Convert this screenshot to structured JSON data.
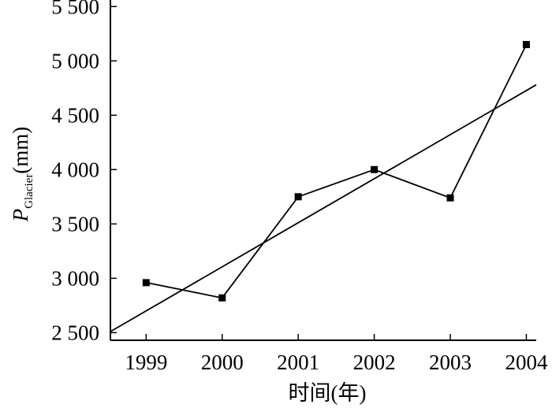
{
  "chart_data": {
    "type": "line",
    "title": "",
    "xlabel": "时间(年)",
    "ylabel": {
      "symbol": "P",
      "subscript": "Glacier",
      "unit": "(mm)"
    },
    "x": [
      1999,
      2000,
      2001,
      2002,
      2003,
      2004
    ],
    "x_tick_labels": [
      "1999",
      "2000",
      "2001",
      "2002",
      "2003",
      "2004"
    ],
    "y_ticks": [
      2500,
      3000,
      3500,
      4000,
      4500,
      5000,
      5500
    ],
    "y_tick_labels": [
      "2 500",
      "3 000",
      "3 500",
      "4 000",
      "4 500",
      "5 000",
      "5 500"
    ],
    "xlim": [
      1998.53,
      2004.13
    ],
    "ylim": [
      2430,
      5560
    ],
    "grid": false,
    "legend": "none",
    "series": [
      {
        "kind": "observed",
        "marker": "square",
        "values": [
          2960,
          2820,
          3750,
          4000,
          3740,
          5150
        ]
      },
      {
        "kind": "linear-trend",
        "marker": "none",
        "x": [
          1998.53,
          2004.13
        ],
        "values": [
          2510,
          4780
        ]
      }
    ],
    "colors": {
      "axis": "#000000",
      "line": "#000000",
      "marker": "#000000"
    }
  }
}
